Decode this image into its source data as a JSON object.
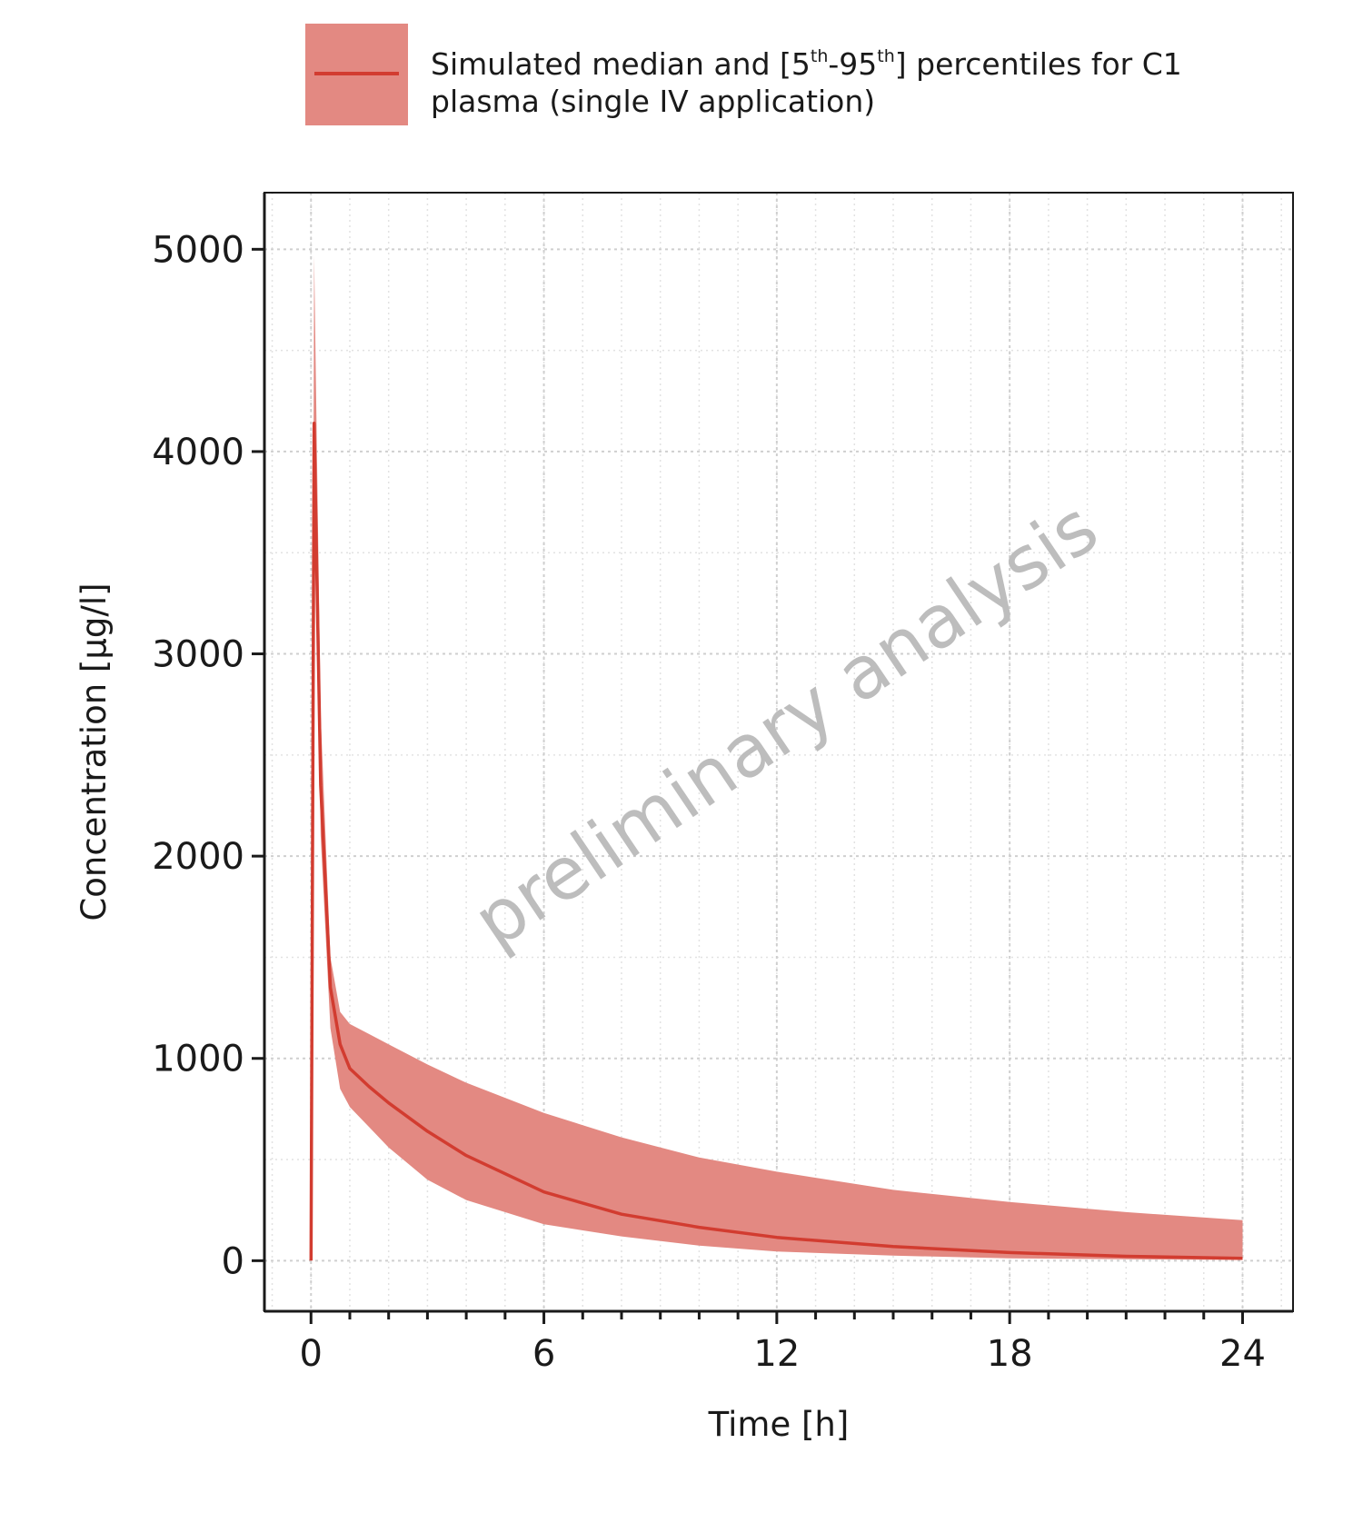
{
  "colors": {
    "band": "#e38982",
    "median": "#d23c30",
    "grid": "#cfcfcf",
    "axis": "#1a1a1a",
    "watermark": "#bdbdbd"
  },
  "legend": {
    "line1_prefix": "Simulated median and [5",
    "sup1": "th",
    "mid": "-95",
    "sup2": "th",
    "line1_suffix": "] percentiles for C1",
    "line2": "plasma (single IV application)"
  },
  "watermark": "preliminary analysis",
  "chart_data": {
    "type": "area",
    "xlabel": "Time [h]",
    "ylabel": "Concentration [µg/l]",
    "xlim": [
      -1.2,
      25.3
    ],
    "ylim": [
      -250,
      5280
    ],
    "xticks": [
      0,
      6,
      12,
      18,
      24
    ],
    "xtick_labels": [
      "0",
      "6",
      "12",
      "18",
      "24"
    ],
    "yticks": [
      0,
      1000,
      2000,
      3000,
      4000,
      5000
    ],
    "ytick_labels": [
      "0",
      "1000",
      "2000",
      "3000",
      "4000",
      "5000"
    ],
    "grid": true,
    "legend_position": "top",
    "series": [
      {
        "name": "Simulated median and [5th-95th] percentiles for C1 plasma (single IV application)",
        "x": [
          0,
          0.08,
          0.25,
          0.5,
          0.75,
          1,
          1.5,
          2,
          3,
          4,
          6,
          8,
          10,
          12,
          15,
          18,
          21,
          24
        ],
        "y": [
          0,
          4140,
          2350,
          1350,
          1070,
          950,
          860,
          780,
          640,
          520,
          340,
          230,
          165,
          115,
          70,
          40,
          22,
          12
        ],
        "lower": [
          0,
          4140,
          2100,
          1150,
          850,
          760,
          660,
          560,
          400,
          300,
          180,
          120,
          75,
          45,
          25,
          12,
          7,
          4
        ],
        "upper": [
          0,
          4970,
          2700,
          1500,
          1230,
          1170,
          1120,
          1070,
          970,
          880,
          730,
          610,
          510,
          440,
          350,
          290,
          240,
          200
        ]
      }
    ]
  }
}
